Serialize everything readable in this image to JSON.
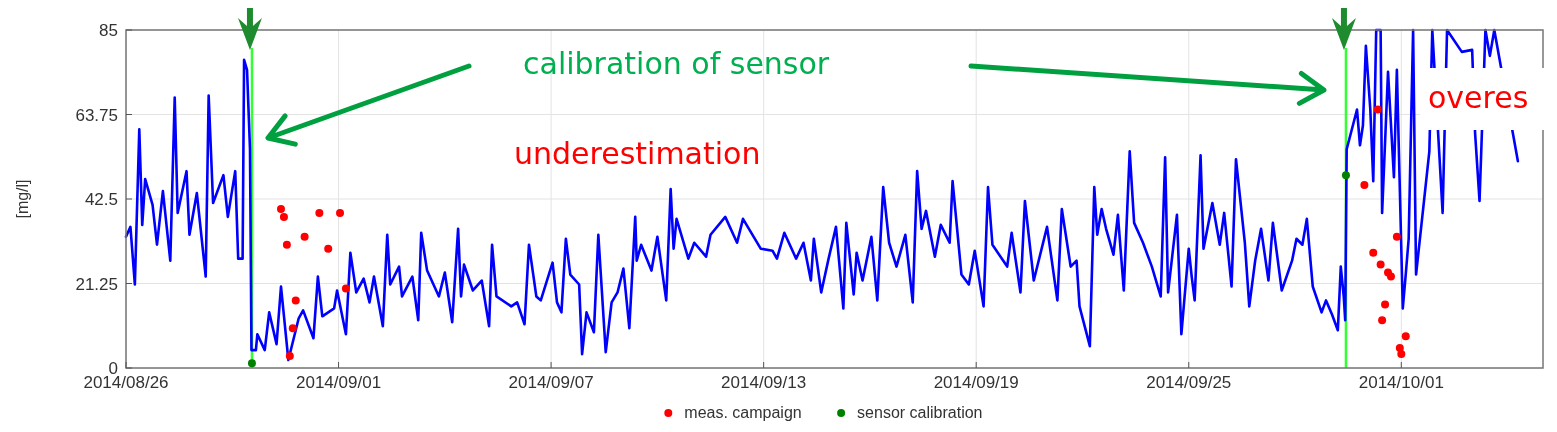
{
  "chart_data": {
    "type": "line",
    "ylabel": "[mg/l]",
    "annotations": [
      "calibration of sensor",
      "underestimation",
      "overes"
    ],
    "xlim": [
      "2014-08-26",
      "2014-10-05"
    ],
    "xticks": [
      {
        "value": "2014-08-26",
        "label": "2014/08/26"
      },
      {
        "value": "2014-09-01",
        "label": "2014/09/01"
      },
      {
        "value": "2014-09-07",
        "label": "2014/09/07"
      },
      {
        "value": "2014-09-13",
        "label": "2014/09/13"
      },
      {
        "value": "2014-09-19",
        "label": "2014/09/19"
      },
      {
        "value": "2014-09-25",
        "label": "2014/09/25"
      },
      {
        "value": "2014-10-01",
        "label": "2014/10/01"
      }
    ],
    "ylim": [
      0,
      85
    ],
    "yticks": [
      0,
      21.25,
      42.5,
      63.75,
      85
    ],
    "grid": true,
    "legend": "bottom",
    "ref_lines": [
      {
        "axis": "x",
        "value": "2014-08-29T13:20",
        "color": "#33ff33"
      },
      {
        "axis": "x",
        "value": "2014-09-29T10:30",
        "color": "#33ff33"
      }
    ],
    "series": [
      {
        "type": "line",
        "color": "#0000ff",
        "marker": "none",
        "line_style": "solid",
        "x": [
          "2014-08-26T00:00",
          "2014-08-26T03:00",
          "2014-08-26T06:00",
          "2014-08-26T09:00",
          "2014-08-26T11:00",
          "2014-08-26T13:00",
          "2014-08-26T18:00",
          "2014-08-26T21:00",
          "2014-08-27T01:00",
          "2014-08-27T06:00",
          "2014-08-27T09:00",
          "2014-08-27T11:00",
          "2014-08-27T17:00",
          "2014-08-27T19:00",
          "2014-08-28T00:00",
          "2014-08-28T06:00",
          "2014-08-28T08:00",
          "2014-08-28T11:00",
          "2014-08-28T18:00",
          "2014-08-28T21:00",
          "2014-08-29T02:00",
          "2014-08-29T04:00",
          "2014-08-29T07:00",
          "2014-08-29T08:00",
          "2014-08-29T10:00",
          "2014-08-29T12:00",
          "2014-08-29T13:00",
          "2014-08-29T16:00",
          "2014-08-29T17:00",
          "2014-08-29T22:00",
          "2014-08-30T01:00",
          "2014-08-30T06:00",
          "2014-08-30T09:00",
          "2014-08-30T14:00",
          "2014-08-30T21:00",
          "2014-08-31T00:00",
          "2014-08-31T07:00",
          "2014-08-31T10:00",
          "2014-08-31T13:00",
          "2014-08-31T21:00",
          "2014-08-31T23:00",
          "2014-09-01T05:00",
          "2014-09-01T08:00",
          "2014-09-01T12:00",
          "2014-09-01T17:00",
          "2014-09-01T21:00",
          "2014-09-02T00:00",
          "2014-09-02T06:00",
          "2014-09-02T09:00",
          "2014-09-02T11:00",
          "2014-09-02T17:00",
          "2014-09-02T19:00",
          "2014-09-03T02:00",
          "2014-09-03T06:00",
          "2014-09-03T08:00",
          "2014-09-03T12:00",
          "2014-09-03T20:00",
          "2014-09-04T00:00",
          "2014-09-04T05:00",
          "2014-09-04T09:00",
          "2014-09-04T11:00",
          "2014-09-04T13:00",
          "2014-09-04T19:00",
          "2014-09-05T01:00",
          "2014-09-05T06:00",
          "2014-09-05T08:00",
          "2014-09-05T11:00",
          "2014-09-05T21:00",
          "2014-09-06T01:00",
          "2014-09-06T06:00",
          "2014-09-06T09:00",
          "2014-09-06T14:00",
          "2014-09-06T17:00",
          "2014-09-07T01:00",
          "2014-09-07T04:00",
          "2014-09-07T07:00",
          "2014-09-07T10:00",
          "2014-09-07T13:00",
          "2014-09-07T19:00",
          "2014-09-07T21:00",
          "2014-09-08T00:00",
          "2014-09-08T05:00",
          "2014-09-08T08:00",
          "2014-09-08T13:00",
          "2014-09-08T17:00",
          "2014-09-08T21:00",
          "2014-09-09T01:00",
          "2014-09-09T05:00",
          "2014-09-09T09:00",
          "2014-09-09T10:00",
          "2014-09-09T13:00",
          "2014-09-09T20:00",
          "2014-09-10T00:00",
          "2014-09-10T06:00",
          "2014-09-10T09:00",
          "2014-09-10T11:00",
          "2014-09-10T13:00",
          "2014-09-10T21:00",
          "2014-09-11T01:00",
          "2014-09-11T09:00",
          "2014-09-11T12:00",
          "2014-09-11T22:00",
          "2014-09-12T06:00",
          "2014-09-12T10:00",
          "2014-09-12T22:00",
          "2014-09-13T06:00",
          "2014-09-13T09:00",
          "2014-09-13T14:00",
          "2014-09-13T22:00",
          "2014-09-14T03:00",
          "2014-09-14T08:00",
          "2014-09-14T10:00",
          "2014-09-14T15:00",
          "2014-09-14T20:00",
          "2014-09-15T01:00",
          "2014-09-15T06:00",
          "2014-09-15T08:00",
          "2014-09-15T13:00",
          "2014-09-15T15:00",
          "2014-09-15T19:00",
          "2014-09-16T01:00",
          "2014-09-16T05:00",
          "2014-09-16T09:00",
          "2014-09-16T13:00",
          "2014-09-16T18:00",
          "2014-09-17T00:00",
          "2014-09-17T05:00",
          "2014-09-17T08:00",
          "2014-09-17T11:00",
          "2014-09-17T14:00",
          "2014-09-17T20:00",
          "2014-09-18T00:00",
          "2014-09-18T06:00",
          "2014-09-18T08:00",
          "2014-09-18T14:00",
          "2014-09-18T19:00",
          "2014-09-18T23:00",
          "2014-09-19T05:00",
          "2014-09-19T08:00",
          "2014-09-19T11:00",
          "2014-09-19T21:00",
          "2014-09-20T00:00",
          "2014-09-20T06:00",
          "2014-09-20T09:00",
          "2014-09-20T15:00",
          "2014-09-21T00:00",
          "2014-09-21T07:00",
          "2014-09-21T10:00",
          "2014-09-21T16:00",
          "2014-09-21T20:00",
          "2014-09-21T22:00",
          "2014-09-22T05:00",
          "2014-09-22T08:00",
          "2014-09-22T10:00",
          "2014-09-22T13:00",
          "2014-09-22T16:00",
          "2014-09-22T21:00",
          "2014-09-23T00:00",
          "2014-09-23T04:00",
          "2014-09-23T08:00",
          "2014-09-23T11:00",
          "2014-09-23T17:00",
          "2014-09-23T23:00",
          "2014-09-24T05:00",
          "2014-09-24T08:00",
          "2014-09-24T10:00",
          "2014-09-24T16:00",
          "2014-09-24T19:00",
          "2014-09-25T00:00",
          "2014-09-25T02:00",
          "2014-09-25T04:00",
          "2014-09-25T08:00",
          "2014-09-25T10:00",
          "2014-09-25T16:00",
          "2014-09-25T21:00",
          "2014-09-26T00:00",
          "2014-09-26T05:00",
          "2014-09-26T08:00",
          "2014-09-26T14:00",
          "2014-09-26T17:00",
          "2014-09-26T21:00",
          "2014-09-27T01:00",
          "2014-09-27T06:00",
          "2014-09-27T09:00",
          "2014-09-27T15:00",
          "2014-09-27T22:00",
          "2014-09-28T01:00",
          "2014-09-28T05:00",
          "2014-09-28T08:00",
          "2014-09-28T12:00",
          "2014-09-28T18:00",
          "2014-09-28T21:00",
          "2014-09-29T01:00",
          "2014-09-29T05:00",
          "2014-09-29T07:00",
          "2014-09-29T09:00",
          "2014-09-29T10:00",
          "2014-09-29T11:00",
          "2014-09-29T18:00",
          "2014-09-29T20:00",
          "2014-09-29T22:00",
          "2014-09-30T00:00",
          "2014-09-30T03:00",
          "2014-09-30T05:00",
          "2014-09-30T07:00",
          "2014-09-30T10:00",
          "2014-09-30T11:00",
          "2014-09-30T15:00",
          "2014-09-30T19:00",
          "2014-09-30T21:00",
          "2014-10-01T01:00",
          "2014-10-01T03:00",
          "2014-10-01T05:00",
          "2014-10-01T08:00",
          "2014-10-01T10:00",
          "2014-10-01T19:00",
          "2014-10-01T21:00",
          "2014-10-02T04:00",
          "2014-10-02T07:00",
          "2014-10-02T17:00",
          "2014-10-03T00:00",
          "2014-10-03T02:00",
          "2014-10-03T05:00",
          "2014-10-03T09:00",
          "2014-10-03T12:00",
          "2014-10-03T15:00",
          "2014-10-04T07:00"
        ],
        "values": [
          33,
          35.5,
          21,
          60,
          36,
          47.5,
          41,
          31,
          44.5,
          27,
          68,
          39,
          49.5,
          33.5,
          44,
          23,
          68.5,
          41.5,
          48.5,
          38,
          49.5,
          27.5,
          27.5,
          77.5,
          75,
          55,
          4.5,
          4.5,
          8.5,
          4.5,
          14,
          6,
          20.5,
          2,
          12.5,
          14.5,
          7.5,
          23,
          13,
          15,
          19.5,
          8.5,
          29,
          19,
          22.5,
          16.5,
          23,
          10.5,
          33.5,
          21,
          25.5,
          18,
          23,
          12,
          34,
          24.5,
          18,
          24,
          11.5,
          35,
          18,
          26,
          19.5,
          22,
          10.5,
          31,
          18,
          15.5,
          16.5,
          11,
          31,
          18,
          17,
          26.5,
          16.5,
          14,
          32.5,
          23.5,
          21,
          3.5,
          14,
          9,
          33.5,
          4,
          16.5,
          19,
          25,
          10,
          38,
          27,
          31,
          24.5,
          33,
          17,
          45,
          30,
          37.5,
          27.5,
          31.5,
          28,
          33.5,
          38,
          31.5,
          37.5,
          30,
          29.5,
          27.5,
          34,
          27.5,
          31.5,
          22,
          32.5,
          19,
          27.5,
          35.5,
          15,
          36.5,
          18.5,
          29,
          22,
          33,
          17,
          45.5,
          31.5,
          25.5,
          33.5,
          16.5,
          49.5,
          35,
          39.5,
          28,
          36,
          31.5,
          47,
          23.5,
          21,
          29.5,
          15.5,
          45.5,
          31,
          25.5,
          34,
          19,
          42,
          22,
          35.5,
          17,
          40,
          25.5,
          27,
          15.5,
          5.5,
          45.5,
          33.5,
          40,
          35,
          28.5,
          38.5,
          19.5,
          54.5,
          36.5,
          31.5,
          25.5,
          18,
          53,
          19,
          38.5,
          8.5,
          30,
          23,
          17,
          53.5,
          30,
          41.5,
          31,
          39,
          20.5,
          52.5,
          31.5,
          15.5,
          27,
          35,
          22,
          36.5,
          19.5,
          27,
          32.5,
          31,
          37.5,
          20.5,
          14,
          17,
          13.5,
          9.5,
          25.5,
          18,
          12,
          55,
          65,
          56,
          61,
          81,
          65,
          47,
          85,
          85,
          39,
          74.5,
          48,
          75,
          15,
          23.5,
          32.5,
          85,
          23.5,
          54.5,
          85,
          39,
          85,
          79.5,
          80,
          59,
          42,
          85,
          78.5,
          85,
          52
        ]
      },
      {
        "type": "scatter",
        "name": "meas. campaign",
        "color": "#ff0000",
        "marker": "circle",
        "x": [
          "2014-08-30T09:00",
          "2014-08-30T11:00",
          "2014-08-30T13:00",
          "2014-08-31T01:00",
          "2014-08-31T11:00",
          "2014-08-31T17:00",
          "2014-09-01T01:00",
          "2014-09-01T05:00",
          "2014-08-30T19:00",
          "2014-08-30T17:00",
          "2014-08-30T15:00",
          "2014-09-30T08:00",
          "2014-09-29T23:00",
          "2014-09-30T21:00",
          "2014-09-30T05:00",
          "2014-09-30T10:00",
          "2014-09-30T15:00",
          "2014-09-30T17:00",
          "2014-09-30T13:00",
          "2014-09-30T11:00",
          "2014-10-01T03:00",
          "2014-09-30T23:00",
          "2014-10-01T00:00"
        ],
        "values": [
          40,
          38,
          31,
          33,
          39,
          30,
          39,
          20,
          17,
          10,
          3,
          65,
          46,
          33,
          29,
          26,
          24,
          23,
          16,
          12,
          8,
          5,
          3.5
        ]
      },
      {
        "type": "scatter",
        "name": "sensor calibration",
        "color": "#008000",
        "marker": "circle",
        "x": [
          "2014-08-29T13:20",
          "2014-09-29T10:30"
        ],
        "values": [
          1.2,
          48.5
        ]
      }
    ]
  }
}
